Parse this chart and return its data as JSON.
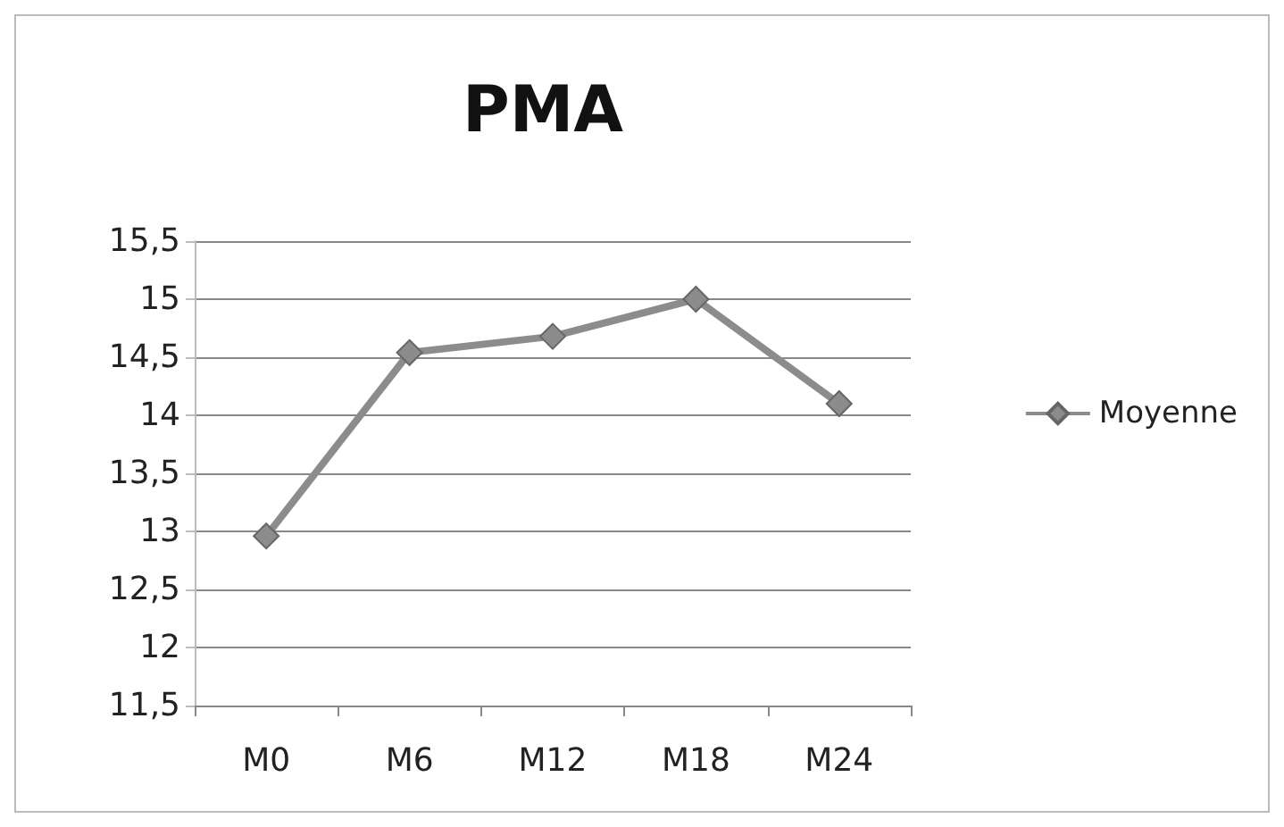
{
  "chart_data": {
    "type": "line",
    "title": "PMA",
    "categories": [
      "M0",
      "M6",
      "M12",
      "M18",
      "M24"
    ],
    "series": [
      {
        "name": "Moyenne",
        "color": "#8c8c8c",
        "values": [
          12.96,
          14.54,
          14.68,
          15.0,
          14.1
        ]
      }
    ],
    "ylim": [
      11.5,
      15.5
    ],
    "yticks": [
      {
        "value": 11.5,
        "label": "11,5"
      },
      {
        "value": 12,
        "label": "12"
      },
      {
        "value": 12.5,
        "label": "12,5"
      },
      {
        "value": 13,
        "label": "13"
      },
      {
        "value": 13.5,
        "label": "13,5"
      },
      {
        "value": 14,
        "label": "14"
      },
      {
        "value": 14.5,
        "label": "14,5"
      },
      {
        "value": 15,
        "label": "15"
      },
      {
        "value": 15.5,
        "label": "15,5"
      }
    ],
    "grid": "y",
    "legend": "right",
    "marker": "diamond"
  }
}
